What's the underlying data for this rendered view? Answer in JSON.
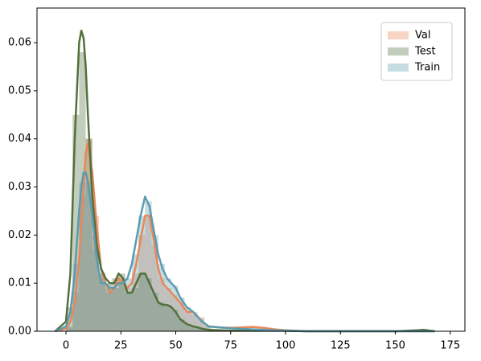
{
  "chart_data": {
    "type": "histogram",
    "bins": [
      0,
      3,
      6,
      9,
      12,
      15,
      18,
      21,
      24,
      27,
      30,
      33,
      36,
      39,
      42,
      45,
      48,
      51,
      54,
      57,
      60,
      63,
      66
    ],
    "kde_x": [
      -5,
      0,
      2,
      4,
      6,
      7,
      8,
      9,
      10,
      12,
      14,
      16,
      18,
      20,
      22,
      24,
      26,
      28,
      30,
      32,
      34,
      36,
      38,
      40,
      42,
      44,
      46,
      48,
      50,
      52,
      55,
      58,
      60,
      62,
      65,
      70,
      75,
      80,
      85,
      90,
      95,
      100,
      110,
      120,
      130,
      140,
      150,
      160,
      163,
      168
    ],
    "series": [
      {
        "name": "Val",
        "color": "#e8875a",
        "values": [
          0.0008,
          0.008,
          0.028,
          0.04,
          0.024,
          0.012,
          0.008,
          0.009,
          0.011,
          0.009,
          0.012,
          0.02,
          0.024,
          0.018,
          0.011,
          0.009,
          0.0075,
          0.006,
          0.004,
          0.004,
          0.003,
          0.0012
        ],
        "kde_y": [
          0,
          0.0005,
          0.002,
          0.006,
          0.015,
          0.022,
          0.03,
          0.037,
          0.039,
          0.033,
          0.022,
          0.013,
          0.01,
          0.008,
          0.009,
          0.011,
          0.01,
          0.009,
          0.01,
          0.014,
          0.019,
          0.024,
          0.024,
          0.019,
          0.013,
          0.01,
          0.009,
          0.008,
          0.007,
          0.006,
          0.004,
          0.004,
          0.003,
          0.002,
          0.001,
          0.0008,
          0.0007,
          0.0008,
          0.0009,
          0.0007,
          0.0004,
          0.0002,
          0,
          0,
          0,
          0,
          0,
          0,
          0,
          0
        ]
      },
      {
        "name": "Test",
        "color": "#52703c",
        "values": [
          0.005,
          0.045,
          0.058,
          0.04,
          0.02,
          0.012,
          0.01,
          0.011,
          0.012,
          0.008,
          0.009,
          0.012,
          0.011,
          0.008,
          0.006,
          0.0055,
          0.0045,
          0.0025,
          0.0015,
          0.001,
          0.0007,
          0.0003
        ],
        "kde_y": [
          0,
          0.002,
          0.012,
          0.04,
          0.06,
          0.0625,
          0.061,
          0.055,
          0.045,
          0.028,
          0.018,
          0.013,
          0.011,
          0.01,
          0.01,
          0.012,
          0.011,
          0.008,
          0.008,
          0.01,
          0.012,
          0.012,
          0.01,
          0.008,
          0.006,
          0.0055,
          0.0055,
          0.005,
          0.004,
          0.0025,
          0.0015,
          0.001,
          0.0008,
          0.0005,
          0.0003,
          0.0002,
          0.0001,
          0.0001,
          0.0001,
          0.0001,
          0.0001,
          0.0001,
          0,
          0,
          0,
          0,
          0,
          0.0002,
          0.0003,
          0
        ]
      },
      {
        "name": "Train",
        "color": "#5b9bb0",
        "values": [
          0.001,
          0.014,
          0.031,
          0.031,
          0.017,
          0.011,
          0.009,
          0.009,
          0.01,
          0.011,
          0.016,
          0.024,
          0.027,
          0.02,
          0.014,
          0.011,
          0.0095,
          0.007,
          0.005,
          0.0035,
          0.0025,
          0.0012
        ],
        "kde_y": [
          0,
          0.001,
          0.004,
          0.012,
          0.025,
          0.03,
          0.033,
          0.033,
          0.031,
          0.024,
          0.015,
          0.01,
          0.01,
          0.009,
          0.009,
          0.01,
          0.01,
          0.011,
          0.014,
          0.019,
          0.024,
          0.028,
          0.026,
          0.021,
          0.016,
          0.013,
          0.011,
          0.01,
          0.009,
          0.007,
          0.005,
          0.004,
          0.003,
          0.002,
          0.001,
          0.0008,
          0.0006,
          0.0005,
          0.0004,
          0.0003,
          0.0002,
          0.0001,
          0,
          0,
          0,
          0,
          0,
          0,
          0,
          0
        ]
      }
    ],
    "xlim": [
      -13.2,
      181.7
    ],
    "ylim": [
      0,
      0.0672
    ],
    "xticks": [
      0,
      25,
      50,
      75,
      100,
      125,
      150,
      175
    ],
    "yticks": [
      {
        "value": 0,
        "label": "0.00"
      },
      {
        "value": 0.01,
        "label": "0.01"
      },
      {
        "value": 0.02,
        "label": "0.02"
      },
      {
        "value": 0.03,
        "label": "0.03"
      },
      {
        "value": 0.04,
        "label": "0.04"
      },
      {
        "value": 0.05,
        "label": "0.05"
      },
      {
        "value": 0.06,
        "label": "0.06"
      }
    ],
    "legend": "upper right"
  }
}
